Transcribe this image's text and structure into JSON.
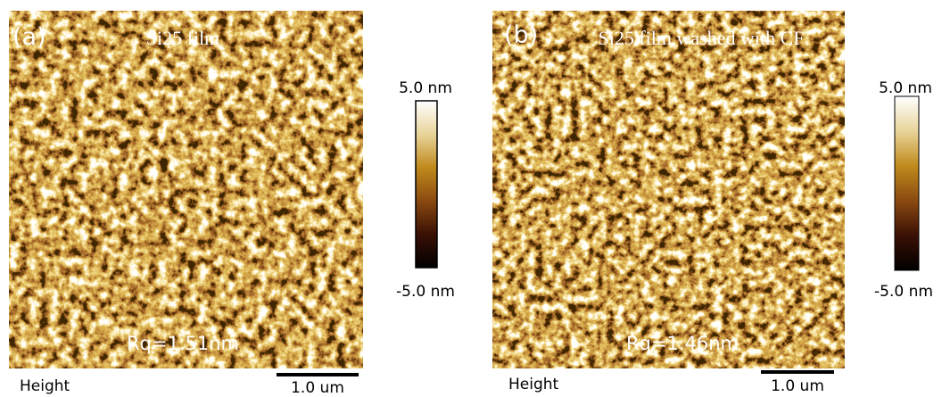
{
  "panels": [
    {
      "label": "(a)",
      "title": "Si25 film",
      "roughness": "Rq=1.51nm",
      "colorbar": {
        "max": "5.0 nm",
        "min": "-5.0 nm"
      },
      "channel": "Height",
      "scale_bar": "1.0 um"
    },
    {
      "label": "(b)",
      "title": "Si25 film washed with CF",
      "roughness": "Rq=1.46nm",
      "colorbar": {
        "max": "5.0 nm",
        "min": "-5.0 nm"
      },
      "channel": "Height",
      "scale_bar": "1.0 um"
    }
  ]
}
